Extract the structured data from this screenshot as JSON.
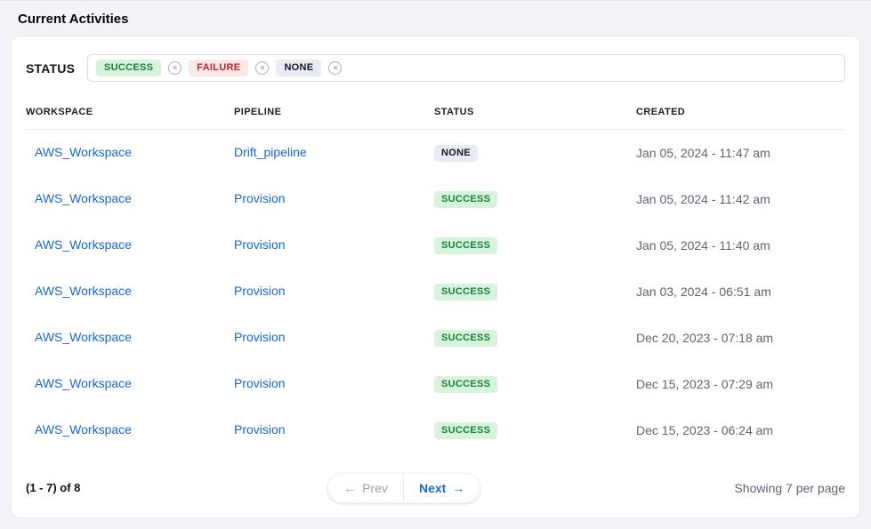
{
  "page": {
    "title": "Current Activities"
  },
  "filter": {
    "label": "STATUS",
    "remove_icon": "✕",
    "tags": [
      {
        "label": "SUCCESS",
        "type": "success"
      },
      {
        "label": "FAILURE",
        "type": "failure"
      },
      {
        "label": "NONE",
        "type": "none"
      }
    ]
  },
  "table": {
    "columns": [
      "WORKSPACE",
      "PIPELINE",
      "STATUS",
      "CREATED"
    ],
    "rows": [
      {
        "workspace": "AWS_Workspace",
        "pipeline": "Drift_pipeline",
        "status": "NONE",
        "status_type": "none",
        "created": "Jan 05, 2024 - 11:47 am"
      },
      {
        "workspace": "AWS_Workspace",
        "pipeline": "Provision",
        "status": "SUCCESS",
        "status_type": "success",
        "created": "Jan 05, 2024 - 11:42 am"
      },
      {
        "workspace": "AWS_Workspace",
        "pipeline": "Provision",
        "status": "SUCCESS",
        "status_type": "success",
        "created": "Jan 05, 2024 - 11:40 am"
      },
      {
        "workspace": "AWS_Workspace",
        "pipeline": "Provision",
        "status": "SUCCESS",
        "status_type": "success",
        "created": "Jan 03, 2024 - 06:51 am"
      },
      {
        "workspace": "AWS_Workspace",
        "pipeline": "Provision",
        "status": "SUCCESS",
        "status_type": "success",
        "created": "Dec 20, 2023 - 07:18 am"
      },
      {
        "workspace": "AWS_Workspace",
        "pipeline": "Provision",
        "status": "SUCCESS",
        "status_type": "success",
        "created": "Dec 15, 2023 - 07:29 am"
      },
      {
        "workspace": "AWS_Workspace",
        "pipeline": "Provision",
        "status": "SUCCESS",
        "status_type": "success",
        "created": "Dec 15, 2023 - 06:24 am"
      }
    ]
  },
  "pagination": {
    "range_label": "(1 - 7) of 8",
    "prev_icon": "←",
    "prev_label": "Prev",
    "next_label": "Next",
    "next_icon": "→",
    "per_page_label": "Showing 7 per page"
  },
  "colors": {
    "page_background": "#f2f4f9",
    "card_background": "#ffffff",
    "link_blue": "#1767d2",
    "success_bg": "#d8f3dc",
    "success_text": "#15833b",
    "failure_bg": "#fbe9e9",
    "failure_text": "#c22127",
    "none_bg": "#e9ebf4",
    "none_text": "#15181f",
    "muted_text": "#5c6477"
  }
}
